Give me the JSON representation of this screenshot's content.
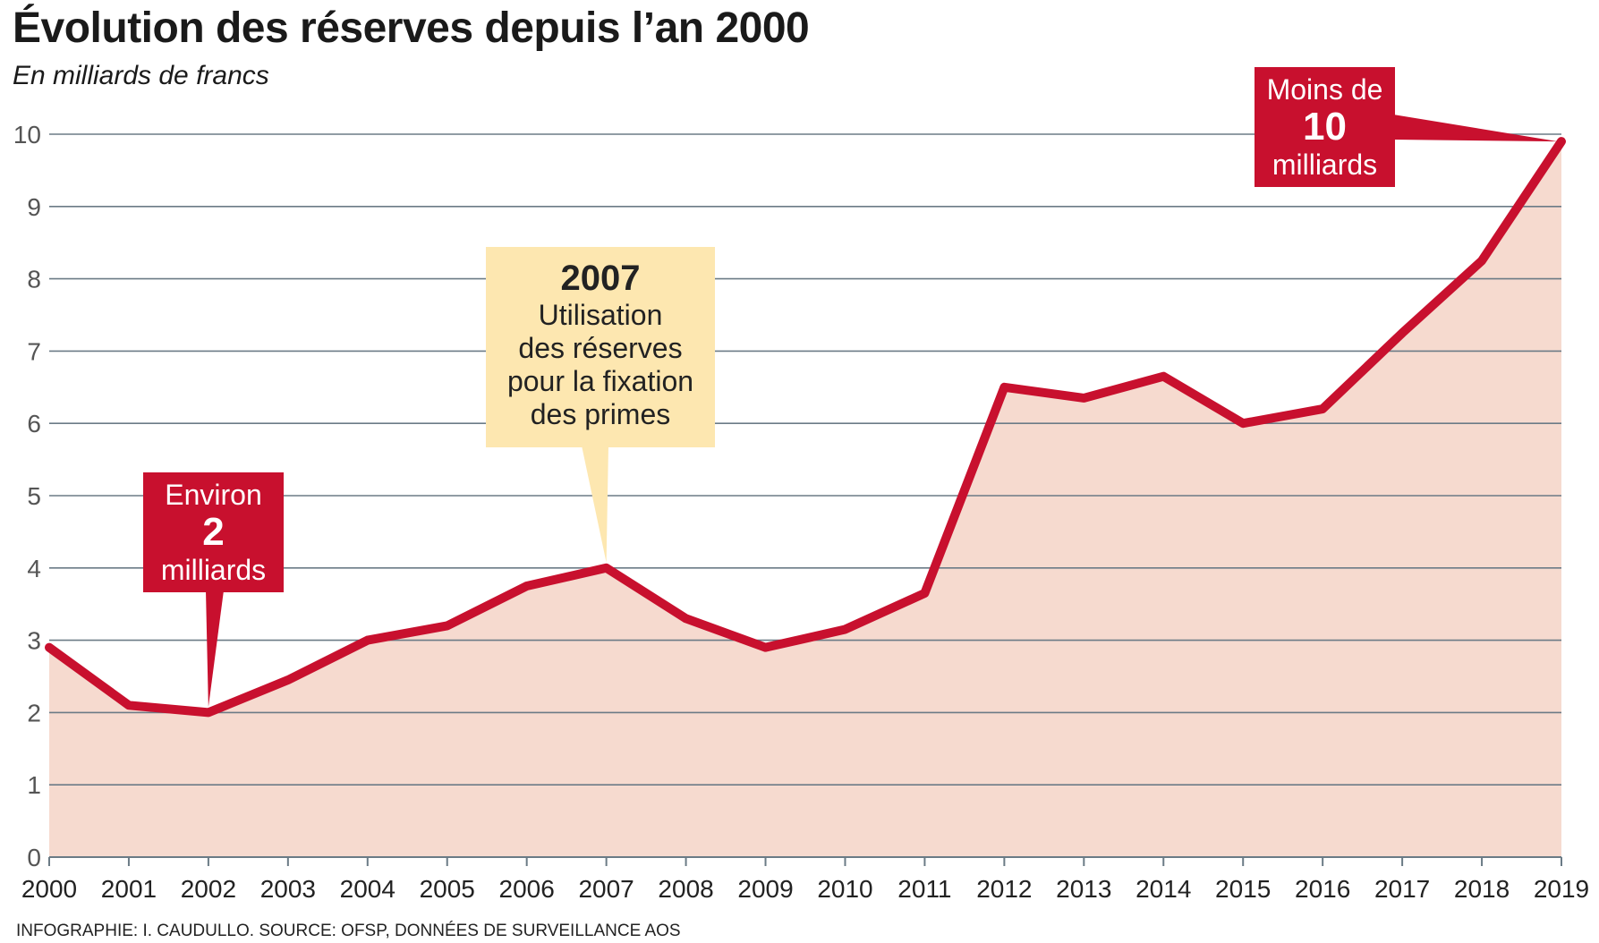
{
  "header": {
    "title": "Évolution des réserves depuis l’an 2000",
    "subtitle": "En milliards de francs"
  },
  "footer": {
    "source": "INFOGRAPHIE: I. CAUDULLO. SOURCE: OFSP, DONNÉES DE SURVEILLANCE AOS"
  },
  "colors": {
    "line": "#c8102e",
    "area": "#f6dacf",
    "grid": "#6b7b86",
    "callout_red": "#c8102e",
    "callout_yellow": "#fde7b0"
  },
  "annotations": {
    "low": {
      "top": "Environ",
      "value": "2",
      "bottom": "milliards"
    },
    "mid": {
      "year": "2007",
      "l1": "Utilisation",
      "l2": "des réserves",
      "l3": "pour la fixation",
      "l4": "des primes"
    },
    "high": {
      "top": "Moins de",
      "value": "10",
      "bottom": "milliards"
    }
  },
  "chart_data": {
    "type": "area",
    "title": "Évolution des réserves depuis l’an 2000",
    "subtitle": "En milliards de francs",
    "xlabel": "",
    "ylabel": "",
    "ylim": [
      0,
      10
    ],
    "yticks": [
      0,
      1,
      2,
      3,
      4,
      5,
      6,
      7,
      8,
      9,
      10
    ],
    "grid": true,
    "x": [
      "2000",
      "2001",
      "2002",
      "2003",
      "2004",
      "2005",
      "2006",
      "2007",
      "2008",
      "2009",
      "2010",
      "2011",
      "2012",
      "2013",
      "2014",
      "2015",
      "2016",
      "2017",
      "2018",
      "2019"
    ],
    "series": [
      {
        "values": [
          2.9,
          2.1,
          2.0,
          2.45,
          3.0,
          3.2,
          3.75,
          4.0,
          3.3,
          2.9,
          3.15,
          3.65,
          6.5,
          6.35,
          6.65,
          6.0,
          6.2,
          7.25,
          8.25,
          9.9
        ]
      }
    ]
  }
}
